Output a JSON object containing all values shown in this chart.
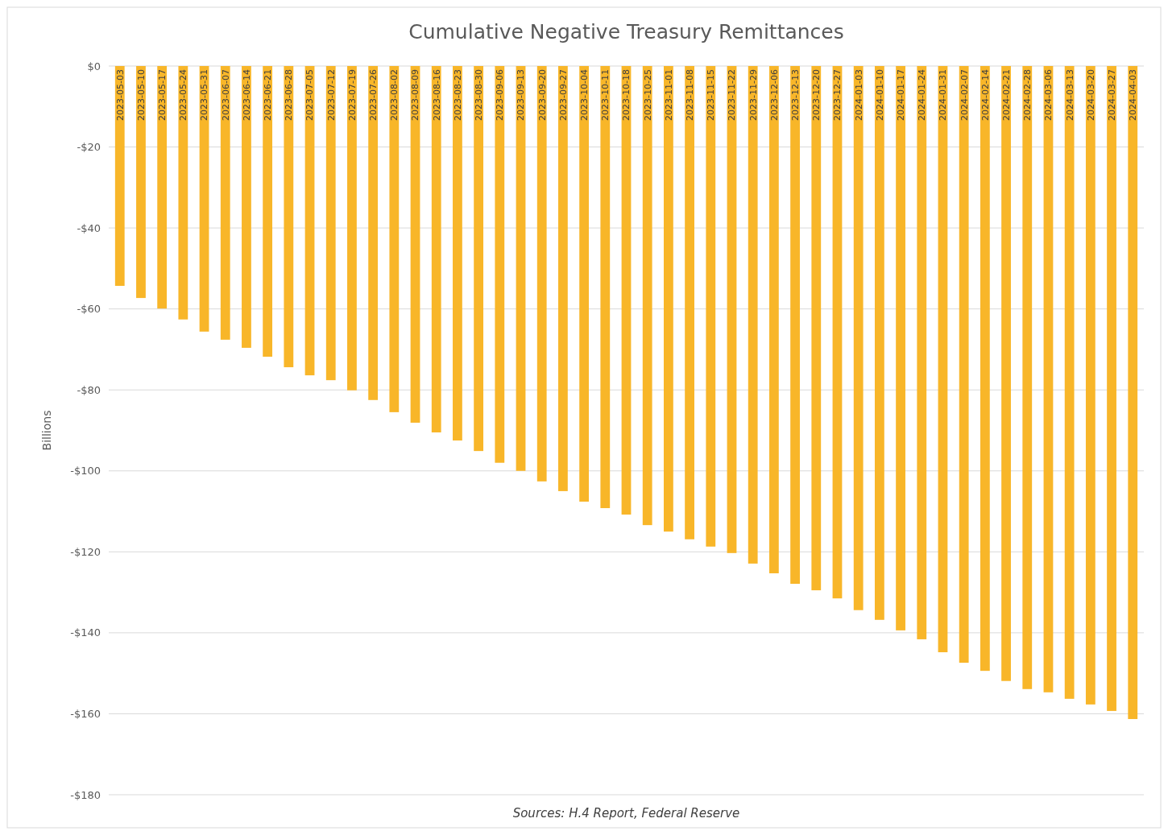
{
  "chart_data": {
    "type": "bar",
    "title": "Cumulative Negative Treasury Remittances",
    "ylabel": "Billions",
    "categories": [
      "2023-05-03",
      "2023-05-10",
      "2023-05-17",
      "2023-05-24",
      "2023-05-31",
      "2023-06-07",
      "2023-06-14",
      "2023-06-21",
      "2023-06-28",
      "2023-07-05",
      "2023-07-12",
      "2023-07-19",
      "2023-07-26",
      "2023-08-02",
      "2023-08-09",
      "2023-08-16",
      "2023-08-23",
      "2023-08-30",
      "2023-09-06",
      "2023-09-13",
      "2023-09-20",
      "2023-09-27",
      "2023-10-04",
      "2023-10-11",
      "2023-10-18",
      "2023-10-25",
      "2023-11-01",
      "2023-11-08",
      "2023-11-15",
      "2023-11-22",
      "2023-11-29",
      "2023-12-06",
      "2023-12-13",
      "2023-12-20",
      "2023-12-27",
      "2024-01-03",
      "2024-01-10",
      "2024-01-17",
      "2024-01-24",
      "2024-01-31",
      "2024-02-07",
      "2024-02-14",
      "2024-02-21",
      "2024-02-28",
      "2024-03-06",
      "2024-03-13",
      "2024-03-20",
      "2024-03-27",
      "2024-04-03"
    ],
    "values": [
      -54.3,
      -57.3,
      -59.9,
      -62.6,
      -65.6,
      -67.6,
      -69.6,
      -71.8,
      -74.4,
      -76.4,
      -77.6,
      -80.1,
      -82.5,
      -85.5,
      -88.1,
      -90.5,
      -92.5,
      -95.1,
      -98,
      -100,
      -102.6,
      -105,
      -107.6,
      -109.2,
      -110.8,
      -113.4,
      -115,
      -116.9,
      -118.7,
      -120.3,
      -122.9,
      -125.3,
      -127.9,
      -129.5,
      -131.5,
      -134.4,
      -136.8,
      -139.4,
      -141.6,
      -144.8,
      -147.4,
      -149.4,
      -151.9,
      -153.9,
      -154.7,
      -156.3,
      -157.7,
      -159.3,
      -161.3
    ],
    "color": "#f8b629",
    "ylim": [
      -180,
      0
    ],
    "yticks": [
      {
        "value": 0,
        "label": "$0"
      },
      {
        "value": -20,
        "label": "-$20"
      },
      {
        "value": -40,
        "label": "-$40"
      },
      {
        "value": -60,
        "label": "-$60"
      },
      {
        "value": -80,
        "label": "-$80"
      },
      {
        "value": -100,
        "label": "-$100"
      },
      {
        "value": -120,
        "label": "-$120"
      },
      {
        "value": -140,
        "label": "-$140"
      },
      {
        "value": -160,
        "label": "-$160"
      },
      {
        "value": -180,
        "label": "-$180"
      }
    ],
    "grid": "y",
    "annotations": [
      "Sources: H.4 Report, Federal Reserve"
    ]
  }
}
